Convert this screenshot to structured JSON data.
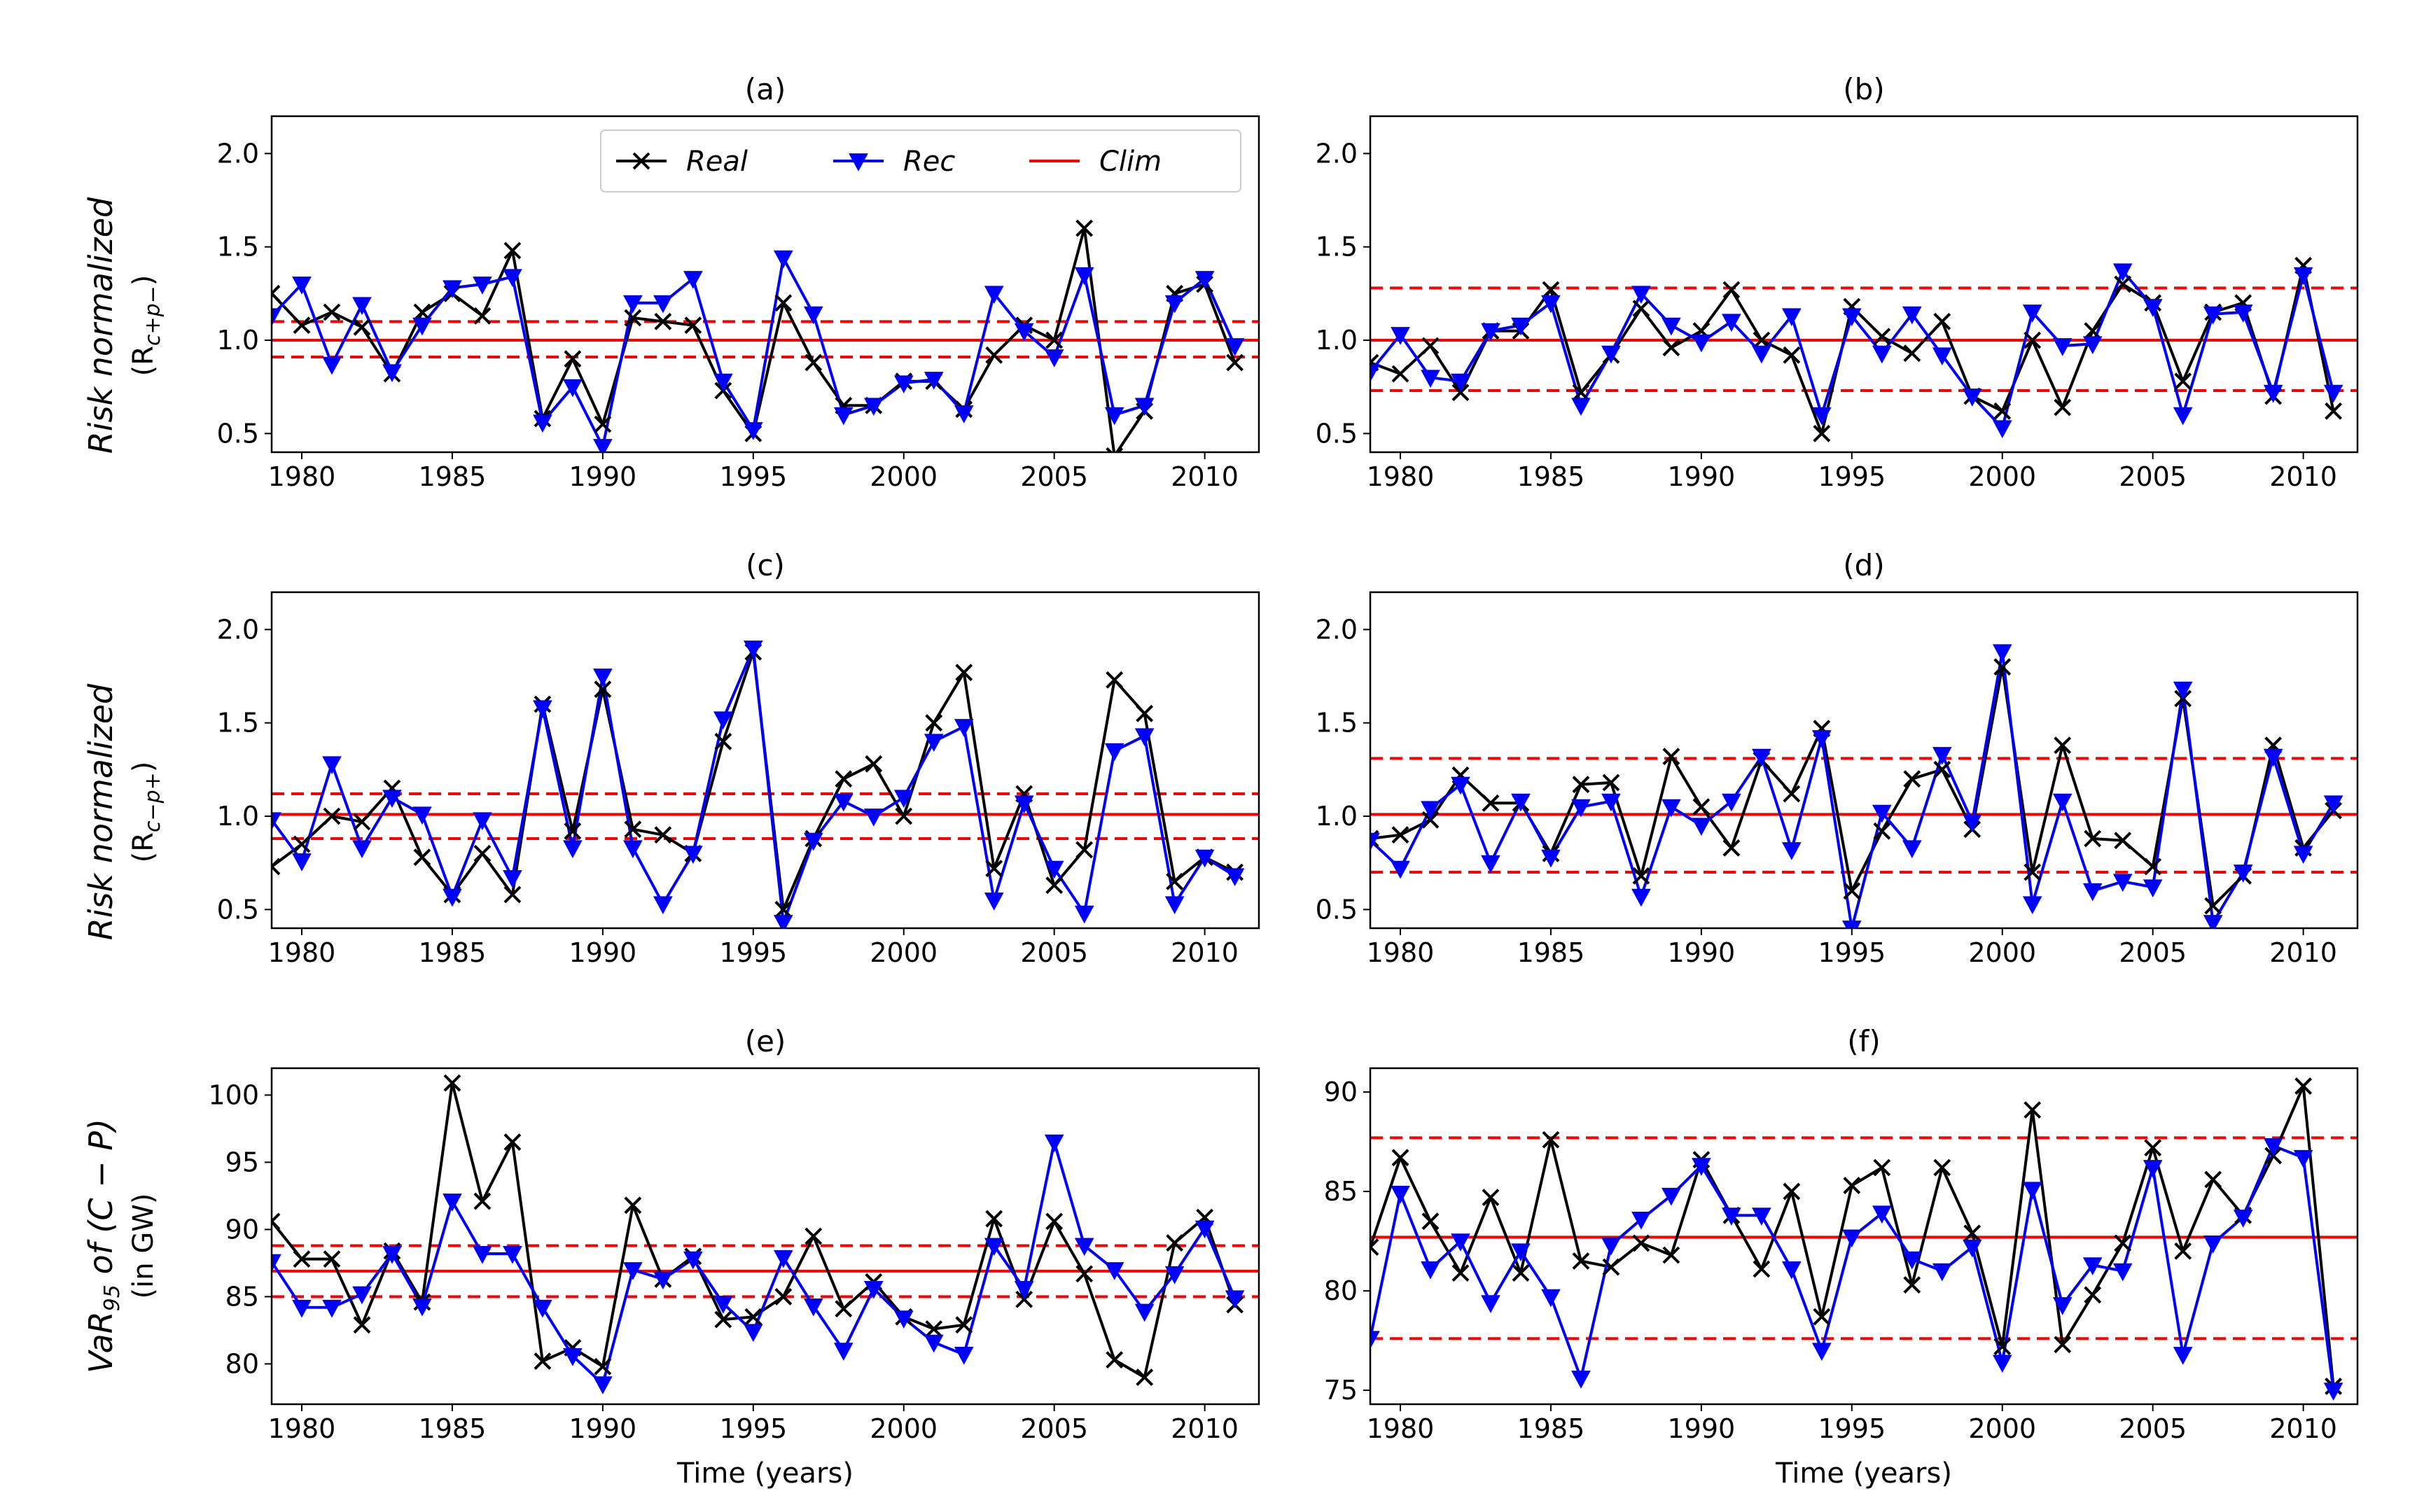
{
  "legend": {
    "real": "Real",
    "rec": "Rec",
    "clim": "Clim"
  },
  "colors": {
    "real": "#000000",
    "rec": "#0000ff",
    "clim": "#ff0000"
  },
  "ylabels": {
    "row1": {
      "italic": "Risk normalized",
      "sub": "(R",
      "sub_subscript": "c+p−",
      "sub_end": ")"
    },
    "row2": {
      "italic": "Risk normalized",
      "sub": "(R",
      "sub_subscript": "c−p+",
      "sub_end": ")"
    },
    "row3": {
      "italic_a": "VaR",
      "italic_sub": "95",
      "italic_b": " of (C − P)",
      "sub": "(in GW)"
    }
  },
  "xlabel": "Time (years)",
  "chart_data": [
    {
      "id": "a",
      "type": "line",
      "title": "(a)",
      "xlim": [
        1979,
        2011.8
      ],
      "ylim": [
        0.4,
        2.2
      ],
      "xticks": [
        1980,
        1985,
        1990,
        1995,
        2000,
        2005,
        2010
      ],
      "yticks": [
        0.5,
        1.0,
        1.5,
        2.0
      ],
      "ytick_labels": [
        "0.5",
        "1.0",
        "1.5",
        "2.0"
      ],
      "clim": 1.0,
      "clim_band": [
        0.91,
        1.1
      ],
      "series": [
        {
          "name": "Real",
          "x": [
            1979,
            1980,
            1981,
            1982,
            1983,
            1984,
            1985,
            1986,
            1987,
            1988,
            1989,
            1990,
            1991,
            1992,
            1993,
            1994,
            1995,
            1996,
            1997,
            1998,
            1999,
            2000,
            2001,
            2002,
            2003,
            2004,
            2005,
            2006,
            2007,
            2008,
            2009,
            2010,
            2011
          ],
          "values": [
            1.25,
            1.08,
            1.15,
            1.07,
            0.82,
            1.15,
            1.25,
            1.13,
            1.48,
            0.58,
            0.9,
            0.55,
            1.12,
            1.1,
            1.08,
            0.73,
            0.5,
            1.2,
            0.88,
            0.65,
            0.65,
            0.78,
            0.78,
            0.63,
            0.92,
            1.08,
            1.0,
            1.6,
            0.38,
            0.62,
            1.25,
            1.3,
            0.88
          ]
        },
        {
          "name": "Rec",
          "x": [
            1979,
            1980,
            1981,
            1982,
            1983,
            1984,
            1985,
            1986,
            1987,
            1988,
            1989,
            1990,
            1991,
            1992,
            1993,
            1994,
            1995,
            1996,
            1997,
            1998,
            1999,
            2000,
            2001,
            2002,
            2003,
            2004,
            2005,
            2006,
            2007,
            2008,
            2009,
            2010,
            2011
          ],
          "values": [
            1.13,
            1.3,
            0.87,
            1.19,
            0.83,
            1.08,
            1.28,
            1.3,
            1.34,
            0.56,
            0.75,
            0.43,
            1.2,
            1.2,
            1.33,
            0.78,
            0.52,
            1.44,
            1.14,
            0.6,
            0.65,
            0.77,
            0.79,
            0.61,
            1.25,
            1.05,
            0.91,
            1.35,
            0.6,
            0.65,
            1.2,
            1.33,
            0.97
          ]
        }
      ]
    },
    {
      "id": "b",
      "type": "line",
      "title": "(b)",
      "xlim": [
        1979,
        2011.8
      ],
      "ylim": [
        0.4,
        2.2
      ],
      "xticks": [
        1980,
        1985,
        1990,
        1995,
        2000,
        2005,
        2010
      ],
      "yticks": [
        0.5,
        1.0,
        1.5,
        2.0
      ],
      "ytick_labels": [
        "0.5",
        "1.0",
        "1.5",
        "2.0"
      ],
      "clim": 1.0,
      "clim_band": [
        0.73,
        1.28
      ],
      "series": [
        {
          "name": "Real",
          "x": [
            1979,
            1980,
            1981,
            1982,
            1983,
            1984,
            1985,
            1986,
            1987,
            1988,
            1989,
            1990,
            1991,
            1992,
            1993,
            1994,
            1995,
            1996,
            1997,
            1998,
            1999,
            2000,
            2001,
            2002,
            2003,
            2004,
            2005,
            2006,
            2007,
            2008,
            2009,
            2010,
            2011
          ],
          "values": [
            0.88,
            0.82,
            0.97,
            0.72,
            1.05,
            1.05,
            1.27,
            0.72,
            0.92,
            1.17,
            0.96,
            1.05,
            1.27,
            1.0,
            0.92,
            0.5,
            1.18,
            1.02,
            0.93,
            1.1,
            0.7,
            0.62,
            1.0,
            0.64,
            1.05,
            1.3,
            1.2,
            0.78,
            1.15,
            1.2,
            0.7,
            1.4,
            0.62
          ]
        },
        {
          "name": "Rec",
          "x": [
            1979,
            1980,
            1981,
            1982,
            1983,
            1984,
            1985,
            1986,
            1987,
            1988,
            1989,
            1990,
            1991,
            1992,
            1993,
            1994,
            1995,
            1996,
            1997,
            1998,
            1999,
            2000,
            2001,
            2002,
            2003,
            2004,
            2005,
            2006,
            2007,
            2008,
            2009,
            2010,
            2011
          ],
          "values": [
            0.83,
            1.03,
            0.8,
            0.78,
            1.05,
            1.08,
            1.2,
            0.65,
            0.93,
            1.25,
            1.08,
            0.99,
            1.1,
            0.93,
            1.13,
            0.6,
            1.13,
            0.93,
            1.14,
            0.92,
            0.7,
            0.53,
            1.15,
            0.97,
            0.98,
            1.37,
            1.18,
            0.6,
            1.14,
            1.15,
            0.72,
            1.35,
            0.72
          ]
        }
      ]
    },
    {
      "id": "c",
      "type": "line",
      "title": "(c)",
      "xlim": [
        1979,
        2011.8
      ],
      "ylim": [
        0.4,
        2.2
      ],
      "xticks": [
        1980,
        1985,
        1990,
        1995,
        2000,
        2005,
        2010
      ],
      "yticks": [
        0.5,
        1.0,
        1.5,
        2.0
      ],
      "ytick_labels": [
        "0.5",
        "1.0",
        "1.5",
        "2.0"
      ],
      "clim": 1.01,
      "clim_band": [
        0.88,
        1.12
      ],
      "series": [
        {
          "name": "Real",
          "x": [
            1979,
            1980,
            1981,
            1982,
            1983,
            1984,
            1985,
            1986,
            1987,
            1988,
            1989,
            1990,
            1991,
            1992,
            1993,
            1994,
            1995,
            1996,
            1997,
            1998,
            1999,
            2000,
            2001,
            2002,
            2003,
            2004,
            2005,
            2006,
            2007,
            2008,
            2009,
            2010,
            2011
          ],
          "values": [
            0.73,
            0.85,
            1.0,
            0.97,
            1.15,
            0.78,
            0.58,
            0.8,
            0.58,
            1.6,
            0.92,
            1.68,
            0.93,
            0.9,
            0.8,
            1.4,
            1.88,
            0.5,
            0.88,
            1.2,
            1.28,
            1.0,
            1.5,
            1.77,
            0.72,
            1.12,
            0.63,
            0.82,
            1.73,
            1.55,
            0.65,
            0.78,
            0.7
          ]
        },
        {
          "name": "Rec",
          "x": [
            1979,
            1980,
            1981,
            1982,
            1983,
            1984,
            1985,
            1986,
            1987,
            1988,
            1989,
            1990,
            1991,
            1992,
            1993,
            1994,
            1995,
            1996,
            1997,
            1998,
            1999,
            2000,
            2001,
            2002,
            2003,
            2004,
            2005,
            2006,
            2007,
            2008,
            2009,
            2010,
            2011
          ],
          "values": [
            0.98,
            0.76,
            1.28,
            0.83,
            1.1,
            1.01,
            0.57,
            0.98,
            0.67,
            1.58,
            0.83,
            1.75,
            0.83,
            0.53,
            0.8,
            1.52,
            1.9,
            0.43,
            0.87,
            1.08,
            1.0,
            1.1,
            1.4,
            1.48,
            0.55,
            1.07,
            0.72,
            0.48,
            1.35,
            1.43,
            0.53,
            0.78,
            0.68
          ]
        }
      ]
    },
    {
      "id": "d",
      "type": "line",
      "title": "(d)",
      "xlim": [
        1979,
        2011.8
      ],
      "ylim": [
        0.4,
        2.2
      ],
      "xticks": [
        1980,
        1985,
        1990,
        1995,
        2000,
        2005,
        2010
      ],
      "yticks": [
        0.5,
        1.0,
        1.5,
        2.0
      ],
      "ytick_labels": [
        "0.5",
        "1.0",
        "1.5",
        "2.0"
      ],
      "clim": 1.01,
      "clim_band": [
        0.7,
        1.31
      ],
      "series": [
        {
          "name": "Real",
          "x": [
            1979,
            1980,
            1981,
            1982,
            1983,
            1984,
            1985,
            1986,
            1987,
            1988,
            1989,
            1990,
            1991,
            1992,
            1993,
            1994,
            1995,
            1996,
            1997,
            1998,
            1999,
            2000,
            2001,
            2002,
            2003,
            2004,
            2005,
            2006,
            2007,
            2008,
            2009,
            2010,
            2011
          ],
          "values": [
            0.88,
            0.9,
            0.98,
            1.22,
            1.07,
            1.07,
            0.8,
            1.17,
            1.18,
            0.68,
            1.32,
            1.05,
            0.83,
            1.3,
            1.12,
            1.47,
            0.6,
            0.92,
            1.2,
            1.25,
            0.93,
            1.8,
            0.7,
            1.38,
            0.88,
            0.87,
            0.73,
            1.63,
            0.52,
            0.68,
            1.38,
            0.83,
            1.03
          ]
        },
        {
          "name": "Rec",
          "x": [
            1979,
            1980,
            1981,
            1982,
            1983,
            1984,
            1985,
            1986,
            1987,
            1988,
            1989,
            1990,
            1991,
            1992,
            1993,
            1994,
            1995,
            1996,
            1997,
            1998,
            1999,
            2000,
            2001,
            2002,
            2003,
            2004,
            2005,
            2006,
            2007,
            2008,
            2009,
            2010,
            2011
          ],
          "values": [
            0.87,
            0.72,
            1.04,
            1.17,
            0.75,
            1.08,
            0.78,
            1.05,
            1.08,
            0.57,
            1.05,
            0.95,
            1.08,
            1.32,
            0.82,
            1.42,
            0.4,
            1.02,
            0.83,
            1.33,
            0.97,
            1.88,
            0.53,
            1.08,
            0.6,
            0.65,
            0.62,
            1.68,
            0.43,
            0.7,
            1.32,
            0.8,
            1.07
          ]
        }
      ]
    },
    {
      "id": "e",
      "type": "line",
      "title": "(e)",
      "xlim": [
        1979,
        2011.8
      ],
      "ylim": [
        77,
        102
      ],
      "xticks": [
        1980,
        1985,
        1990,
        1995,
        2000,
        2005,
        2010
      ],
      "yticks": [
        80,
        85,
        90,
        95,
        100
      ],
      "ytick_labels": [
        "80",
        "85",
        "90",
        "95",
        "100"
      ],
      "clim": 86.9,
      "clim_band": [
        85.0,
        88.8
      ],
      "series": [
        {
          "name": "Real",
          "x": [
            1979,
            1980,
            1981,
            1982,
            1983,
            1984,
            1985,
            1986,
            1987,
            1988,
            1989,
            1990,
            1991,
            1992,
            1993,
            1994,
            1995,
            1996,
            1997,
            1998,
            1999,
            2000,
            2001,
            2002,
            2003,
            2004,
            2005,
            2006,
            2007,
            2008,
            2009,
            2010,
            2011
          ],
          "values": [
            90.6,
            87.8,
            87.8,
            82.9,
            88.4,
            84.6,
            100.9,
            92.1,
            96.5,
            80.2,
            81.2,
            79.8,
            91.8,
            86.3,
            88.0,
            83.3,
            83.5,
            85.0,
            89.5,
            84.1,
            86.1,
            83.5,
            82.6,
            82.9,
            90.8,
            84.8,
            90.6,
            86.7,
            80.3,
            79.0,
            89.0,
            90.9,
            84.4
          ]
        },
        {
          "name": "Rec",
          "x": [
            1979,
            1980,
            1981,
            1982,
            1983,
            1984,
            1985,
            1986,
            1987,
            1988,
            1989,
            1990,
            1991,
            1992,
            1993,
            1994,
            1995,
            1996,
            1997,
            1998,
            1999,
            2000,
            2001,
            2002,
            2003,
            2004,
            2005,
            2006,
            2007,
            2008,
            2009,
            2010,
            2011
          ],
          "values": [
            87.6,
            84.2,
            84.2,
            85.2,
            88.2,
            84.3,
            92.1,
            88.2,
            88.2,
            84.2,
            80.6,
            78.5,
            87.0,
            86.3,
            87.8,
            84.5,
            82.4,
            87.9,
            84.3,
            81.0,
            85.6,
            83.4,
            81.6,
            80.7,
            88.8,
            85.6,
            96.5,
            88.8,
            87.0,
            83.9,
            86.7,
            90.1,
            84.9
          ]
        }
      ]
    },
    {
      "id": "f",
      "type": "line",
      "title": "(f)",
      "xlim": [
        1979,
        2011.8
      ],
      "ylim": [
        74.3,
        91.2
      ],
      "xticks": [
        1980,
        1985,
        1990,
        1995,
        2000,
        2005,
        2010
      ],
      "yticks": [
        75,
        80,
        85,
        90
      ],
      "ytick_labels": [
        "75",
        "80",
        "85",
        "90"
      ],
      "clim": 82.7,
      "clim_band": [
        77.6,
        87.7
      ],
      "series": [
        {
          "name": "Real",
          "x": [
            1979,
            1980,
            1981,
            1982,
            1983,
            1984,
            1985,
            1986,
            1987,
            1988,
            1989,
            1990,
            1991,
            1992,
            1993,
            1994,
            1995,
            1996,
            1997,
            1998,
            1999,
            2000,
            2001,
            2002,
            2003,
            2004,
            2005,
            2006,
            2007,
            2008,
            2009,
            2010,
            2011
          ],
          "values": [
            82.2,
            86.7,
            83.5,
            80.9,
            84.7,
            80.9,
            87.6,
            81.5,
            81.2,
            82.4,
            81.8,
            86.6,
            83.8,
            81.1,
            85.0,
            78.7,
            85.3,
            86.2,
            80.3,
            86.2,
            82.9,
            77.2,
            89.1,
            77.3,
            79.8,
            82.4,
            87.2,
            82.0,
            85.6,
            83.8,
            86.8,
            90.3,
            75.2
          ]
        },
        {
          "name": "Rec",
          "x": [
            1979,
            1980,
            1981,
            1982,
            1983,
            1984,
            1985,
            1986,
            1987,
            1988,
            1989,
            1990,
            1991,
            1992,
            1993,
            1994,
            1995,
            1996,
            1997,
            1998,
            1999,
            2000,
            2001,
            2002,
            2003,
            2004,
            2005,
            2006,
            2007,
            2008,
            2009,
            2010,
            2011
          ],
          "values": [
            77.6,
            84.9,
            81.1,
            82.5,
            79.4,
            82.0,
            79.7,
            75.6,
            82.3,
            83.6,
            84.8,
            86.3,
            83.8,
            83.8,
            81.1,
            77.0,
            82.7,
            83.9,
            81.6,
            81.0,
            82.2,
            76.4,
            85.1,
            79.3,
            81.3,
            81.0,
            86.2,
            76.8,
            82.4,
            83.7,
            87.3,
            86.7,
            75.0
          ]
        }
      ]
    }
  ]
}
